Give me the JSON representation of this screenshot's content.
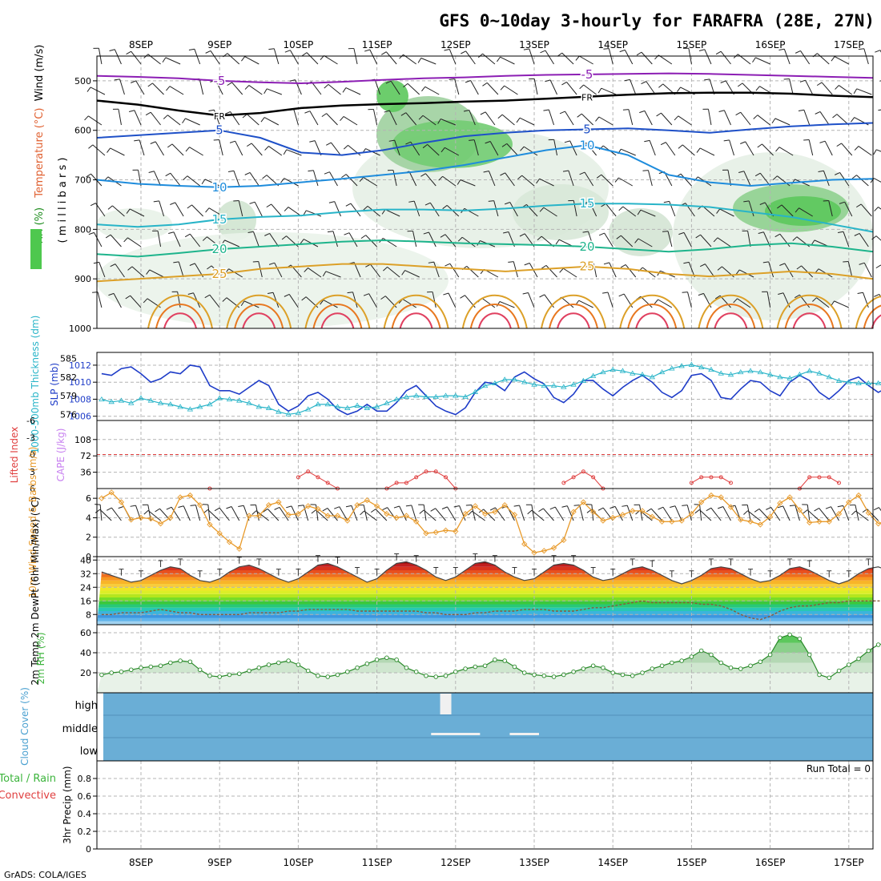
{
  "title": "GFS 0~10day 3-hourly for FARAFRA (28E, 27N)",
  "credit": "GrADS: COLA/IGES",
  "date_ticks": [
    "8SEP",
    "9SEP",
    "10SEP",
    "11SEP",
    "12SEP",
    "13SEP",
    "14SEP",
    "15SEP",
    "16SEP",
    "17SEP"
  ],
  "colors": {
    "frame": "#000000",
    "grid": "#b4b4b4",
    "slp": "#1e3cc8",
    "thickness": "#28b4c8",
    "cape": "#c882f0",
    "lifted": "#e04040",
    "wind": "#e89a2a",
    "rh": "#3cb43c",
    "cloud_bg": "#6aaed6",
    "cloud_bar": "#f0f0f0"
  },
  "chart_data": [
    {
      "id": "upper_air",
      "type": "heatmap",
      "ylabel_parts": [
        "RH (%)",
        "Temperature (°C)",
        "Wind (m/s)"
      ],
      "ylabel_right": "( m i l l i b a r s )",
      "yticks": [
        "500",
        "600",
        "700",
        "800",
        "900",
        "1000"
      ],
      "ylim": [
        450,
        1000
      ],
      "temperature_isotherms": [
        {
          "label": "-5",
          "color": "#8c1eb4",
          "p": [
            490,
            492,
            495,
            500,
            503,
            505,
            502,
            498,
            495,
            493,
            490,
            488,
            487,
            486,
            485,
            486,
            488,
            490,
            492,
            494
          ]
        },
        {
          "label": "FR",
          "color": "#000000",
          "p": [
            540,
            548,
            560,
            570,
            565,
            555,
            550,
            547,
            545,
            542,
            540,
            536,
            532,
            528,
            525,
            524,
            524,
            526,
            530,
            533
          ]
        },
        {
          "label": "5",
          "color": "#1e50c8",
          "p": [
            615,
            610,
            605,
            600,
            615,
            645,
            650,
            640,
            625,
            612,
            605,
            600,
            598,
            596,
            600,
            605,
            598,
            592,
            588,
            585
          ]
        },
        {
          "label": "10",
          "color": "#1e8cdc",
          "p": [
            700,
            708,
            712,
            715,
            712,
            705,
            698,
            690,
            682,
            670,
            655,
            640,
            630,
            650,
            690,
            705,
            712,
            706,
            700,
            698
          ]
        },
        {
          "label": "15",
          "color": "#28b4c8",
          "p": [
            790,
            795,
            790,
            780,
            775,
            772,
            765,
            760,
            760,
            762,
            758,
            752,
            748,
            748,
            750,
            755,
            765,
            775,
            790,
            805
          ]
        },
        {
          "label": "20",
          "color": "#1eb48c",
          "p": [
            850,
            855,
            848,
            840,
            835,
            830,
            825,
            822,
            825,
            828,
            830,
            832,
            835,
            840,
            845,
            840,
            832,
            828,
            835,
            845
          ]
        },
        {
          "label": "25",
          "color": "#dca028",
          "p": [
            905,
            900,
            895,
            890,
            880,
            875,
            870,
            870,
            875,
            880,
            885,
            880,
            875,
            880,
            890,
            895,
            890,
            885,
            890,
            900
          ]
        }
      ]
    },
    {
      "id": "slp_thickness",
      "type": "line",
      "ylabel_left": "1000-500mb Thickness (dm)",
      "ylabel_right": "SLP (mb)",
      "left_ticks": [
        585,
        582,
        579,
        576
      ],
      "right_ticks": [
        1012,
        1010,
        1008,
        1006
      ],
      "left_ylim": [
        575,
        586
      ],
      "right_ylim": [
        1005.5,
        1013.5
      ],
      "series": [
        {
          "name": "SLP (mb)",
          "axis": "right",
          "values": [
            1011.0,
            1010.8,
            1011.6,
            1011.8,
            1011.0,
            1010.0,
            1010.4,
            1011.2,
            1011.0,
            1012.0,
            1011.8,
            1009.6,
            1009.0,
            1009.0,
            1008.6,
            1009.4,
            1010.2,
            1009.6,
            1007.4,
            1006.6,
            1007.2,
            1008.4,
            1008.8,
            1008.0,
            1006.8,
            1006.2,
            1006.6,
            1007.4,
            1006.6,
            1006.6,
            1007.6,
            1009.0,
            1009.6,
            1008.4,
            1007.2,
            1006.6,
            1006.2,
            1007.0,
            1008.8,
            1010.0,
            1009.8,
            1009.0,
            1010.6,
            1011.2,
            1010.4,
            1009.8,
            1008.2,
            1007.6,
            1008.6,
            1010.2,
            1010.2,
            1009.2,
            1008.4,
            1009.4,
            1010.2,
            1010.8,
            1010.0,
            1008.8,
            1008.2,
            1009.0,
            1010.8,
            1011.0,
            1010.2,
            1008.2,
            1008.0,
            1009.2,
            1010.2,
            1010.0,
            1009.0,
            1008.4,
            1010.0,
            1010.8,
            1010.2,
            1008.8,
            1008.0,
            1009.0,
            1010.2,
            1010.6,
            1009.6,
            1008.8,
            1009.4,
            1010.6,
            1010.6,
            1009.2,
            1008.6,
            1009.8,
            1010.8,
            1010.6,
            1010.0,
            1011.2,
            1012.0,
            1013.0,
            1013.0,
            1012.6,
            1013.4
          ]
        },
        {
          "name": "1000-500mb Thickness (dm)",
          "axis": "left",
          "values": [
            578.4,
            578.0,
            578.2,
            577.8,
            578.6,
            578.2,
            577.8,
            577.6,
            577.2,
            576.8,
            577.2,
            577.6,
            578.6,
            578.4,
            578.2,
            577.8,
            577.2,
            577.0,
            576.4,
            576.0,
            576.2,
            576.8,
            577.6,
            577.6,
            577.2,
            577.0,
            577.4,
            577.0,
            577.2,
            577.8,
            578.4,
            578.8,
            579.0,
            578.8,
            578.8,
            579.0,
            579.0,
            578.8,
            579.6,
            580.6,
            581.0,
            581.6,
            581.6,
            581.2,
            580.8,
            580.6,
            580.6,
            580.4,
            580.8,
            581.4,
            582.2,
            582.8,
            583.2,
            583.0,
            582.6,
            582.4,
            582.0,
            582.8,
            583.4,
            583.8,
            584.0,
            583.6,
            583.2,
            582.6,
            582.4,
            582.8,
            583.0,
            582.8,
            582.4,
            582.0,
            581.8,
            582.4,
            583.0,
            582.6,
            582.0,
            581.4,
            581.2,
            581.0,
            581.0,
            581.0,
            581.6,
            581.2,
            580.8,
            580.4,
            580.2,
            580.0,
            580.6,
            581.0,
            580.4,
            579.6,
            579.0,
            578.6,
            578.0,
            577.4,
            576.8
          ]
        }
      ]
    },
    {
      "id": "cape_li",
      "type": "line",
      "ylabel_left": "Lifted Index",
      "ylabel_right": "CAPE (J/kg)",
      "left_ticks": [
        "-6",
        "-3",
        "0",
        "3",
        "6"
      ],
      "right_ticks": [
        "108",
        "72",
        "36"
      ],
      "left_ylim": [
        6,
        -6
      ],
      "right_ylim": [
        0,
        150
      ],
      "series": [
        {
          "name": "Lifted Index",
          "values": [
            9,
            9,
            9,
            9,
            9,
            9,
            9,
            9,
            9,
            9,
            8,
            6,
            9,
            9,
            9,
            9,
            9,
            9,
            9,
            7,
            4,
            3,
            4,
            5,
            6,
            9,
            9,
            9,
            9,
            6,
            5,
            5,
            4,
            3,
            3,
            4,
            6,
            9,
            9,
            9,
            9,
            9,
            9,
            9,
            9,
            9,
            9,
            5,
            4,
            3,
            4,
            6,
            9,
            9,
            9,
            9,
            9,
            9,
            9,
            8,
            5,
            4,
            4,
            4,
            5,
            9,
            9,
            9,
            9,
            9,
            9,
            6,
            4,
            4,
            4,
            5,
            9,
            9,
            9,
            9,
            9,
            9,
            9,
            9,
            9,
            9,
            9,
            6,
            5,
            4,
            5,
            4,
            3,
            2,
            3
          ]
        },
        {
          "name": "CAPE (J/kg)",
          "values": [
            0,
            0,
            0,
            0,
            0,
            0,
            0,
            0,
            0,
            0,
            0,
            0,
            0,
            0,
            0,
            0,
            0,
            0,
            0,
            0,
            0,
            0,
            0,
            0,
            0,
            0,
            0,
            0,
            0,
            0,
            0,
            0,
            0,
            0,
            0,
            0,
            0,
            0,
            0,
            0,
            0,
            0,
            0,
            0,
            0,
            0,
            0,
            0,
            0,
            0,
            0,
            0,
            0,
            0,
            0,
            0,
            0,
            0,
            0,
            0,
            0,
            0,
            0,
            0,
            0,
            0,
            0,
            0,
            0,
            0,
            0,
            0,
            0,
            0,
            0,
            0,
            0,
            0,
            0,
            0,
            0,
            0,
            0,
            0,
            0,
            0,
            0,
            0,
            0,
            0,
            0,
            0,
            0,
            0,
            0
          ]
        }
      ]
    },
    {
      "id": "wind10m",
      "type": "line",
      "ylabel": "10m Wind Speed & Barbs (m/s)",
      "yticks": [
        "0",
        "2",
        "4",
        "6"
      ],
      "ylim": [
        0,
        7
      ],
      "series": [
        {
          "name": "10m Wind Speed",
          "values": [
            6.0,
            6.6,
            5.6,
            3.8,
            4.0,
            3.9,
            3.4,
            4.0,
            6.1,
            6.3,
            5.3,
            3.3,
            2.4,
            1.5,
            0.8,
            4.2,
            4.2,
            5.3,
            5.6,
            4.3,
            4.4,
            5.2,
            4.9,
            4.2,
            4.2,
            3.7,
            5.3,
            5.8,
            5.2,
            4.4,
            4.0,
            4.2,
            3.6,
            2.4,
            2.5,
            2.7,
            2.6,
            4.4,
            5.2,
            4.4,
            4.6,
            5.3,
            4.3,
            1.3,
            0.4,
            0.6,
            0.9,
            1.7,
            4.6,
            5.6,
            4.6,
            3.7,
            4.0,
            4.3,
            4.7,
            4.7,
            4.1,
            3.6,
            3.6,
            3.7,
            4.4,
            5.6,
            6.3,
            6.1,
            5.1,
            3.8,
            3.6,
            3.3,
            4.1,
            5.5,
            6.1,
            4.8,
            3.5,
            3.6,
            3.6,
            4.4,
            5.6,
            6.3,
            4.5,
            3.4,
            3.7,
            4.4,
            5.6,
            5.7,
            3.7,
            3.8,
            4.6,
            4.5,
            1.9,
            3.4,
            7.2,
            6.4,
            5.3,
            4.3,
            3.5
          ]
        }
      ]
    },
    {
      "id": "temp2m",
      "type": "area",
      "ylabel": "2m Temp 2m DewPt (6hr Min/Max) (°C)",
      "yticks": [
        "8",
        "16",
        "24",
        "32",
        "40"
      ],
      "ylim": [
        2,
        42
      ],
      "series": [
        {
          "name": "2m Temp",
          "values": [
            33,
            31,
            29,
            27,
            28,
            31,
            34,
            36,
            35,
            31,
            28,
            27,
            29,
            33,
            36,
            37,
            35,
            32,
            29,
            27,
            29,
            33,
            37,
            38,
            36,
            33,
            30,
            27,
            29,
            34,
            38,
            39,
            37,
            34,
            30,
            28,
            30,
            34,
            38,
            39,
            37,
            33,
            30,
            28,
            29,
            33,
            37,
            38,
            37,
            34,
            30,
            28,
            29,
            32,
            35,
            36,
            34,
            31,
            28,
            26,
            28,
            31,
            35,
            36,
            35,
            32,
            29,
            27,
            28,
            31,
            35,
            36,
            34,
            31,
            28,
            26,
            28,
            32,
            35,
            36,
            34,
            31,
            28,
            25,
            27,
            31,
            35,
            37,
            35,
            31,
            28,
            24,
            27,
            24,
            26
          ]
        },
        {
          "name": "2m DewPt",
          "values": [
            8,
            8,
            9,
            9,
            9,
            10,
            11,
            10,
            9,
            9,
            8,
            8,
            8,
            8,
            8,
            9,
            9,
            9,
            9,
            10,
            10,
            11,
            11,
            11,
            11,
            11,
            10,
            10,
            10,
            10,
            10,
            10,
            10,
            9,
            9,
            8,
            8,
            8,
            9,
            9,
            10,
            10,
            10,
            11,
            11,
            11,
            10,
            10,
            10,
            11,
            12,
            12,
            13,
            14,
            15,
            16,
            15,
            15,
            15,
            15,
            15,
            14,
            14,
            13,
            11,
            8,
            6,
            5,
            7,
            10,
            12,
            13,
            13,
            14,
            15,
            15,
            16,
            16,
            16,
            16,
            16,
            17,
            18,
            19,
            20,
            20,
            19,
            19,
            18,
            17,
            17,
            16,
            17,
            18,
            19
          ]
        }
      ]
    },
    {
      "id": "rh2m",
      "type": "area",
      "ylabel": "2m RH (%)",
      "yticks": [
        "20",
        "40",
        "60"
      ],
      "ylim": [
        0,
        68
      ],
      "series": [
        {
          "name": "2m RH",
          "values": [
            18,
            20,
            21,
            23,
            25,
            26,
            27,
            30,
            32,
            31,
            23,
            17,
            16,
            18,
            19,
            22,
            25,
            28,
            30,
            32,
            28,
            22,
            17,
            16,
            18,
            21,
            25,
            29,
            33,
            35,
            33,
            25,
            21,
            17,
            16,
            17,
            21,
            24,
            26,
            27,
            33,
            32,
            26,
            20,
            18,
            17,
            16,
            18,
            21,
            24,
            27,
            25,
            20,
            18,
            17,
            20,
            24,
            27,
            30,
            32,
            36,
            42,
            38,
            30,
            25,
            24,
            27,
            31,
            38,
            55,
            58,
            54,
            38,
            18,
            15,
            22,
            28,
            34,
            42,
            48,
            50,
            40,
            30,
            26,
            27,
            32,
            39,
            45,
            62,
            58,
            40,
            32,
            37,
            43,
            58
          ]
        }
      ]
    },
    {
      "id": "cloud",
      "type": "bar",
      "ylabel": "Cloud Cover (%)",
      "levels": [
        "high",
        "middle",
        "low"
      ],
      "cloud_high_steps": [
        35
      ],
      "cloud_mid_blocks": [
        [
          34,
          38
        ],
        [
          42,
          44
        ]
      ],
      "cloud_low_steps": [
        87
      ]
    },
    {
      "id": "precip",
      "type": "bar",
      "ylabel": "3hr Precip (mm)",
      "ylabel_left_1": "Total / Rain",
      "ylabel_left_2": "Convective",
      "yticks": [
        "0",
        "0.2",
        "0.4",
        "0.6",
        "0.8"
      ],
      "ylim": [
        0,
        1
      ],
      "run_total": "Run Total = 0",
      "values": []
    }
  ]
}
